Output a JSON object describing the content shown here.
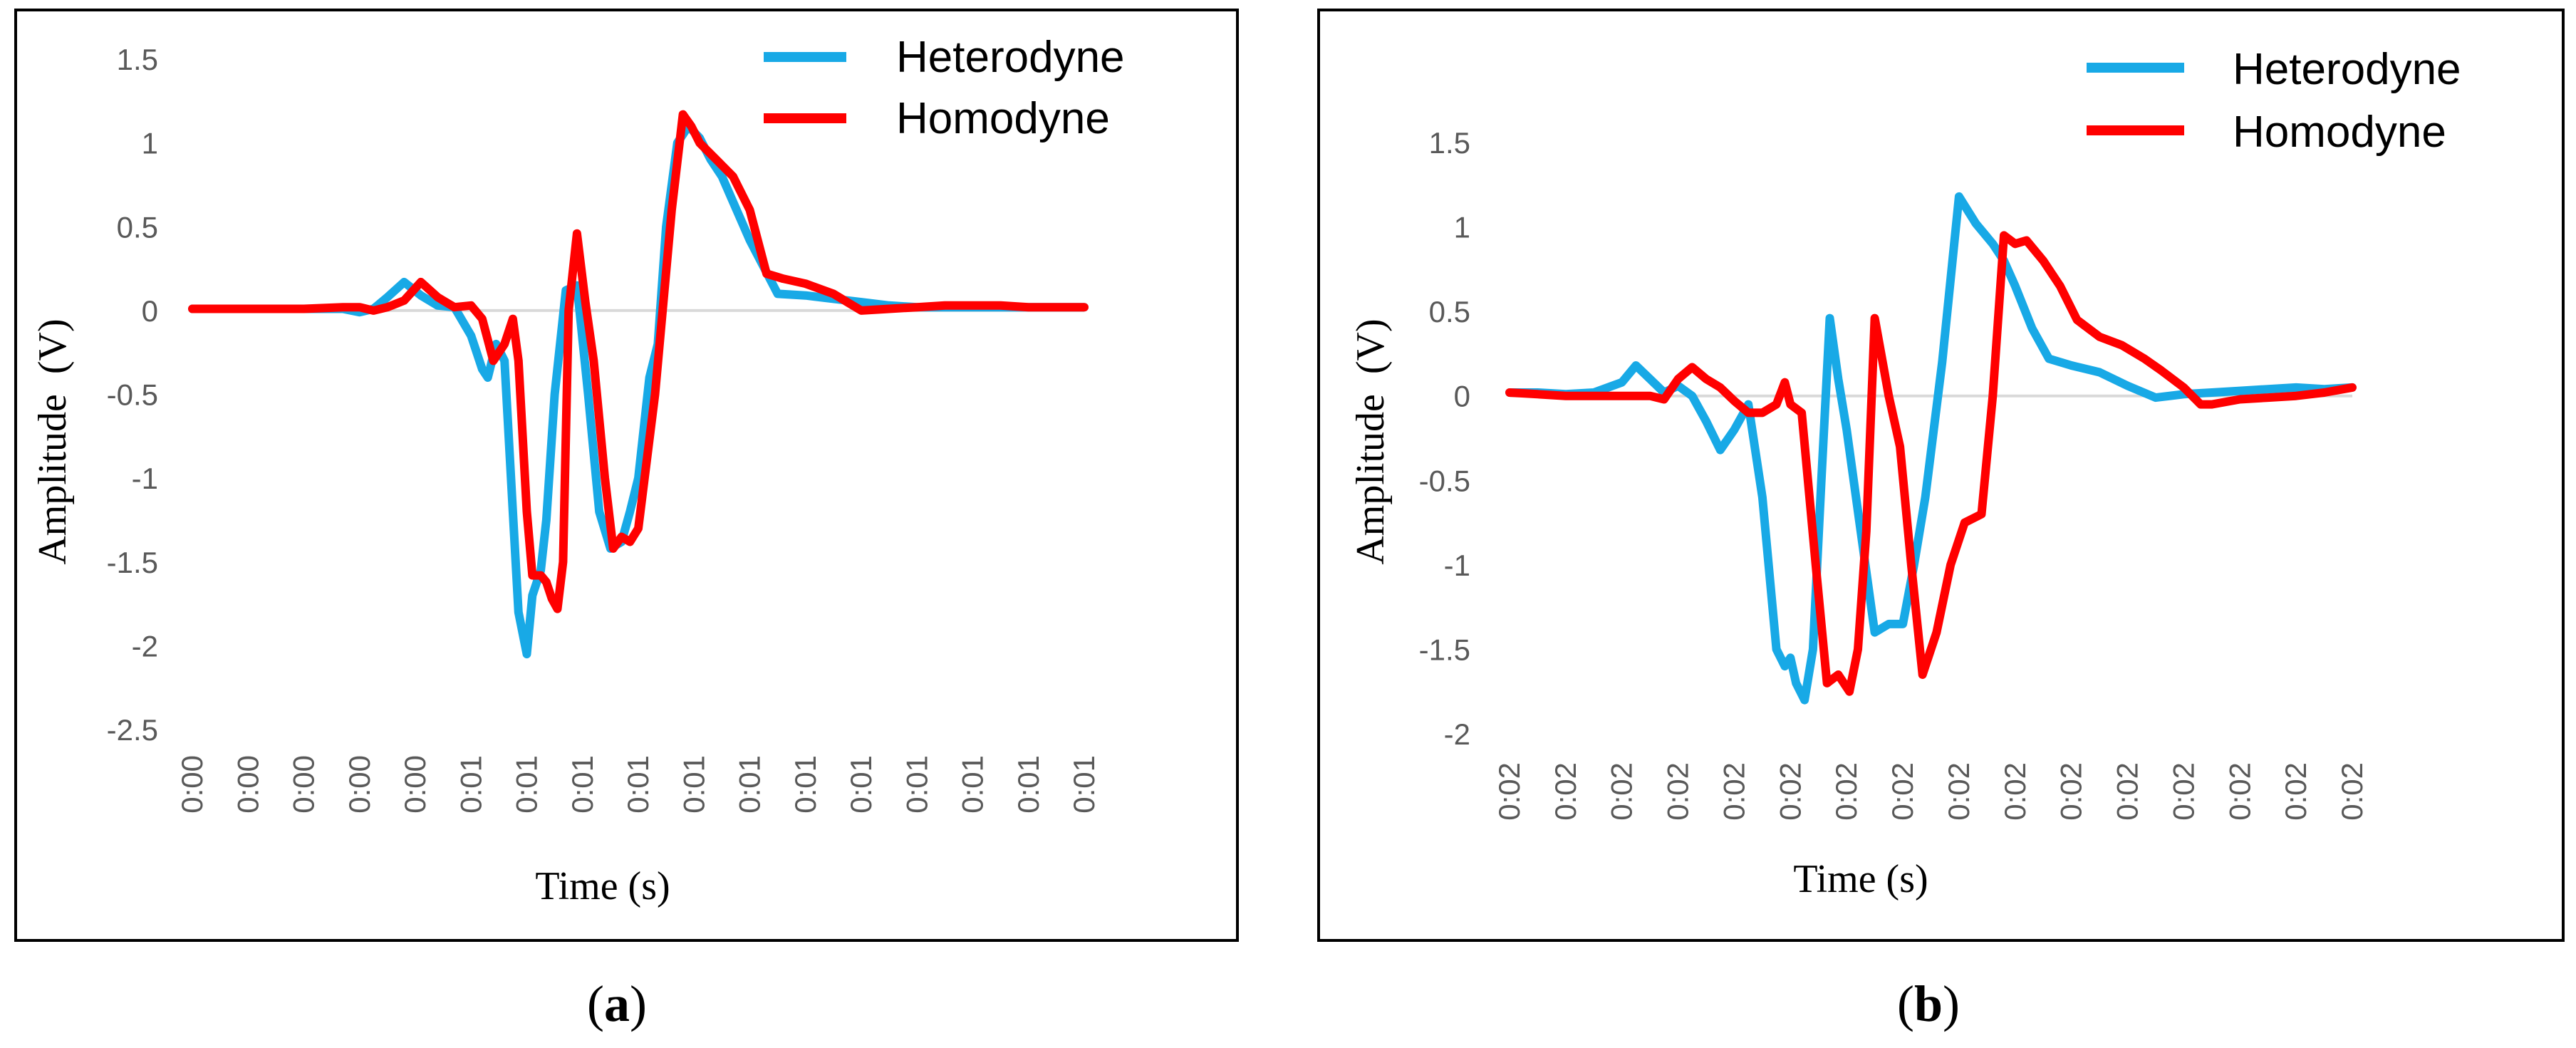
{
  "figure": {
    "panel_labels": [
      "a",
      "b"
    ],
    "panel_label_parens": [
      "(",
      ")"
    ]
  },
  "colors": {
    "heterodyne": "#18A9E6",
    "homodyne": "#FF0000",
    "zero_line": "#D9D9D9",
    "frame": "#000000"
  },
  "chart_data": [
    {
      "type": "line",
      "title": "",
      "xlabel": "Time (s)",
      "ylabel": "Amplitude  (V)",
      "ylim": [
        -2.5,
        1.5
      ],
      "yticks": [
        1.5,
        1,
        0.5,
        0,
        -0.5,
        -1,
        -1.5,
        -2,
        -2.5
      ],
      "ytick_labels": [
        "1.5",
        "1",
        "0.5",
        "0",
        "-0.5",
        "-1",
        "-1.5",
        "-2",
        "-2.5"
      ],
      "xlim": [
        0,
        16
      ],
      "xtick_labels": [
        "0:00",
        "0:00",
        "0:00",
        "0:00",
        "0:00",
        "0:01",
        "0:01",
        "0:01",
        "0:01",
        "0:01",
        "0:01",
        "0:01",
        "0:01",
        "0:01",
        "0:01",
        "0:01",
        "0:01"
      ],
      "grid": false,
      "legend_position": "top-right",
      "series": [
        {
          "name": "Heterodyne",
          "color": "#18A9E6",
          "x": [
            0,
            1,
            2,
            2.7,
            3,
            3.25,
            3.5,
            3.8,
            4.1,
            4.4,
            4.7,
            5.0,
            5.2,
            5.3,
            5.45,
            5.6,
            5.75,
            5.85,
            6.0,
            6.1,
            6.25,
            6.35,
            6.5,
            6.7,
            6.9,
            7.1,
            7.3,
            7.5,
            7.7,
            7.85,
            8.0,
            8.2,
            8.35,
            8.5,
            8.7,
            8.9,
            9.1,
            9.3,
            9.5,
            10,
            10.5,
            11,
            11.5,
            12,
            12.5,
            13,
            13.5,
            14,
            14.5,
            15,
            15.5,
            16
          ],
          "y": [
            0.01,
            0.01,
            0.01,
            0.01,
            -0.01,
            0.01,
            0.08,
            0.17,
            0.09,
            0.03,
            0.02,
            -0.15,
            -0.35,
            -0.4,
            -0.2,
            -0.3,
            -1.2,
            -1.8,
            -2.05,
            -1.7,
            -1.55,
            -1.25,
            -0.5,
            0.12,
            0.15,
            -0.5,
            -1.2,
            -1.42,
            -1.38,
            -1.2,
            -1.0,
            -0.4,
            -0.2,
            0.5,
            1.0,
            1.1,
            1.03,
            0.9,
            0.8,
            0.42,
            0.1,
            0.09,
            0.07,
            0.05,
            0.03,
            0.02,
            0.02,
            0.02,
            0.02,
            0.02,
            0.02,
            0.02
          ]
        },
        {
          "name": "Homodyne",
          "color": "#FF0000",
          "x": [
            0,
            1,
            2,
            2.7,
            3,
            3.25,
            3.5,
            3.8,
            4.1,
            4.4,
            4.7,
            5.0,
            5.2,
            5.4,
            5.6,
            5.75,
            5.85,
            6.0,
            6.1,
            6.25,
            6.35,
            6.45,
            6.55,
            6.65,
            6.75,
            6.9,
            7.05,
            7.2,
            7.4,
            7.55,
            7.7,
            7.85,
            8.0,
            8.3,
            8.6,
            8.8,
            8.95,
            9.1,
            9.4,
            9.7,
            10,
            10.3,
            10.6,
            11,
            11.5,
            11.8,
            12,
            12.5,
            13,
            13.5,
            14,
            14.5,
            15,
            15.5,
            16
          ],
          "y": [
            0.01,
            0.01,
            0.01,
            0.02,
            0.02,
            0.0,
            0.02,
            0.06,
            0.17,
            0.08,
            0.02,
            0.03,
            -0.05,
            -0.3,
            -0.2,
            -0.05,
            -0.3,
            -1.2,
            -1.58,
            -1.58,
            -1.62,
            -1.72,
            -1.78,
            -1.5,
            0.0,
            0.46,
            0.05,
            -0.3,
            -1.0,
            -1.42,
            -1.35,
            -1.38,
            -1.3,
            -0.5,
            0.6,
            1.17,
            1.1,
            1.0,
            0.9,
            0.8,
            0.6,
            0.22,
            0.19,
            0.16,
            0.1,
            0.04,
            0.0,
            0.01,
            0.02,
            0.03,
            0.03,
            0.03,
            0.02,
            0.02,
            0.02
          ]
        }
      ]
    },
    {
      "type": "line",
      "title": "",
      "xlabel": "Time (s)",
      "ylabel": "Amplitude  (V)",
      "ylim": [
        -2,
        1.5
      ],
      "yticks": [
        1.5,
        1,
        0.5,
        0,
        -0.5,
        -1,
        -1.5,
        -2
      ],
      "ytick_labels": [
        "1.5",
        "1",
        "0.5",
        "0",
        "-0.5",
        "-1",
        "-1.5",
        "-2"
      ],
      "xlim": [
        0,
        15
      ],
      "xtick_labels": [
        "0:02",
        "0:02",
        "0:02",
        "0:02",
        "0:02",
        "0:02",
        "0:02",
        "0:02",
        "0:02",
        "0:02",
        "0:02",
        "0:02",
        "0:02",
        "0:02",
        "0:02",
        "0:02"
      ],
      "grid": false,
      "legend_position": "top-right",
      "series": [
        {
          "name": "Heterodyne",
          "color": "#18A9E6",
          "x": [
            0,
            0.5,
            1,
            1.5,
            2,
            2.25,
            2.5,
            2.75,
            3,
            3.25,
            3.5,
            3.75,
            4,
            4.25,
            4.5,
            4.75,
            4.9,
            5,
            5.1,
            5.25,
            5.4,
            5.55,
            5.7,
            5.85,
            6,
            6.25,
            6.5,
            6.75,
            7,
            7.2,
            7.4,
            7.7,
            8,
            8.3,
            8.6,
            8.8,
            9,
            9.3,
            9.6,
            10,
            10.5,
            11,
            11.5,
            12,
            12.5,
            13,
            13.5,
            14,
            14.5,
            15
          ],
          "y": [
            0.02,
            0.02,
            0.01,
            0.02,
            0.08,
            0.18,
            0.1,
            0.02,
            0.06,
            0.0,
            -0.15,
            -0.32,
            -0.2,
            -0.05,
            -0.6,
            -1.5,
            -1.6,
            -1.55,
            -1.7,
            -1.8,
            -1.5,
            -0.5,
            0.46,
            0.1,
            -0.2,
            -0.8,
            -1.4,
            -1.35,
            -1.35,
            -1.0,
            -0.6,
            0.2,
            1.18,
            1.02,
            0.9,
            0.8,
            0.65,
            0.4,
            0.22,
            0.18,
            0.14,
            0.06,
            -0.01,
            0.01,
            0.02,
            0.03,
            0.04,
            0.05,
            0.04,
            0.05
          ]
        },
        {
          "name": "Homodyne",
          "color": "#FF0000",
          "x": [
            0,
            0.5,
            1,
            1.5,
            2,
            2.5,
            2.75,
            3,
            3.25,
            3.5,
            3.75,
            4,
            4.25,
            4.5,
            4.75,
            4.9,
            5,
            5.2,
            5.45,
            5.65,
            5.85,
            6.05,
            6.2,
            6.35,
            6.5,
            6.75,
            6.95,
            7.15,
            7.35,
            7.6,
            7.85,
            8.1,
            8.4,
            8.6,
            8.8,
            9,
            9.2,
            9.5,
            9.8,
            10.1,
            10.5,
            10.9,
            11.3,
            11.6,
            12,
            12.3,
            12.5,
            13,
            13.5,
            14,
            14.5,
            15
          ],
          "y": [
            0.02,
            0.01,
            0.0,
            0.0,
            0.0,
            0.0,
            -0.02,
            0.1,
            0.17,
            0.1,
            0.05,
            -0.03,
            -0.1,
            -0.1,
            -0.05,
            0.08,
            -0.05,
            -0.1,
            -1.0,
            -1.7,
            -1.65,
            -1.75,
            -1.5,
            -0.8,
            0.46,
            0.0,
            -0.3,
            -1.0,
            -1.65,
            -1.4,
            -1.0,
            -0.75,
            -0.7,
            0.0,
            0.95,
            0.9,
            0.92,
            0.8,
            0.65,
            0.45,
            0.35,
            0.3,
            0.22,
            0.15,
            0.05,
            -0.05,
            -0.05,
            -0.02,
            -0.01,
            0.0,
            0.02,
            0.05
          ]
        }
      ]
    }
  ]
}
